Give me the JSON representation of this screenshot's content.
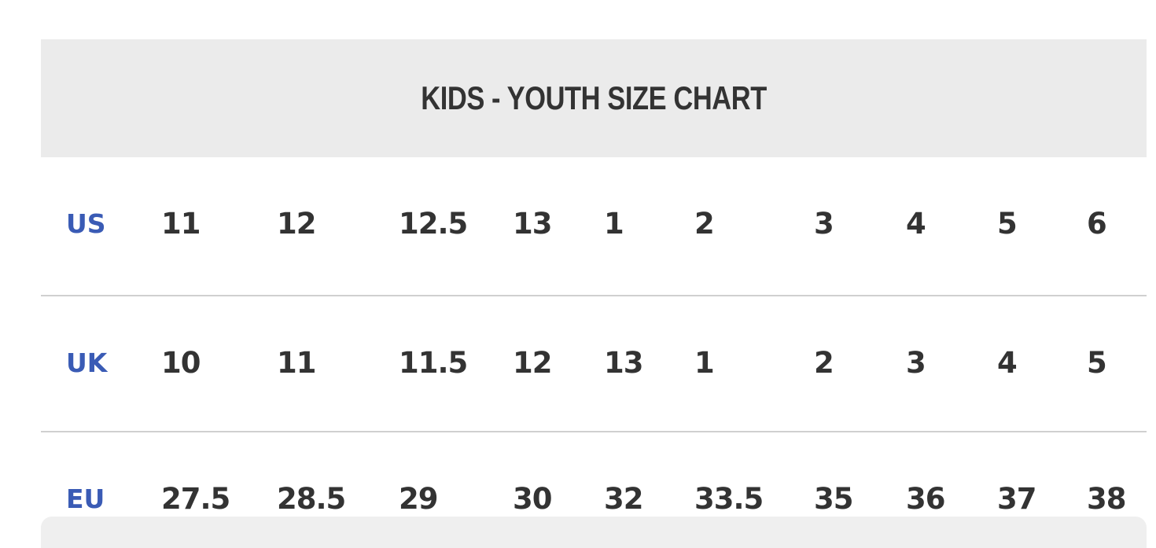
{
  "title": "KIDS - YOUTH SIZE CHART",
  "rows": [
    {
      "label": "US",
      "values": [
        "11",
        "12",
        "12.5",
        "13",
        "1",
        "2",
        "3",
        "4",
        "5",
        "6"
      ]
    },
    {
      "label": "UK",
      "values": [
        "10",
        "11",
        "11.5",
        "12",
        "13",
        "1",
        "2",
        "3",
        "4",
        "5"
      ]
    },
    {
      "label": "EU",
      "values": [
        "27.5",
        "28.5",
        "29",
        "30",
        "32",
        "33.5",
        "35",
        "36",
        "37",
        "38"
      ]
    }
  ],
  "colors": {
    "label": "#3a5bb5",
    "text": "#333333",
    "header_bg": "#ebebeb"
  }
}
